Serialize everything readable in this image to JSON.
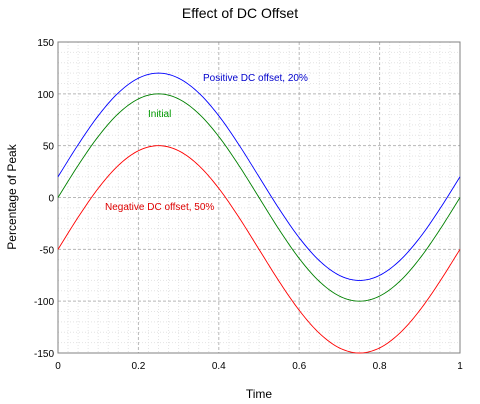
{
  "chart_data": {
    "type": "line",
    "title": "Effect of DC Offset",
    "xlabel": "Time",
    "ylabel": "Percentage of Peak",
    "xlim": [
      0,
      1
    ],
    "ylim": [
      -150,
      150
    ],
    "x_ticks": [
      "0",
      "0.2",
      "0.4",
      "0.6",
      "0.8",
      "1"
    ],
    "y_ticks": [
      "150",
      "100",
      "50",
      "0",
      "-50",
      "-100",
      "-150"
    ],
    "grid": true,
    "x": [
      0,
      0.05,
      0.1,
      0.15,
      0.2,
      0.25,
      0.3,
      0.35,
      0.4,
      0.45,
      0.5,
      0.55,
      0.6,
      0.65,
      0.7,
      0.75,
      0.8,
      0.85,
      0.9,
      0.95,
      1
    ],
    "series": [
      {
        "name": "Positive DC offset, 20%",
        "color": "#0000ff",
        "values": [
          20,
          50.9,
          78.8,
          100.9,
          115.1,
          120,
          115.1,
          100.9,
          78.8,
          50.9,
          20,
          -10.9,
          -38.8,
          -60.9,
          -75.1,
          -80,
          -75.1,
          -60.9,
          -38.8,
          -10.9,
          20
        ]
      },
      {
        "name": "Initial",
        "color": "#008000",
        "values": [
          0,
          30.9,
          58.8,
          80.9,
          95.1,
          100,
          95.1,
          80.9,
          58.8,
          30.9,
          0,
          -30.9,
          -58.8,
          -80.9,
          -95.1,
          -100,
          -95.1,
          -80.9,
          -58.8,
          -30.9,
          0
        ]
      },
      {
        "name": "Negative DC offset, 50%",
        "color": "#ff0000",
        "values": [
          -50,
          -19.1,
          8.8,
          30.9,
          45.1,
          50,
          45.1,
          30.9,
          8.8,
          -19.1,
          -50,
          -80.9,
          -108.8,
          -130.9,
          -145.1,
          -150,
          -145.1,
          -130.9,
          -108.8,
          -80.9,
          -50
        ]
      }
    ]
  }
}
